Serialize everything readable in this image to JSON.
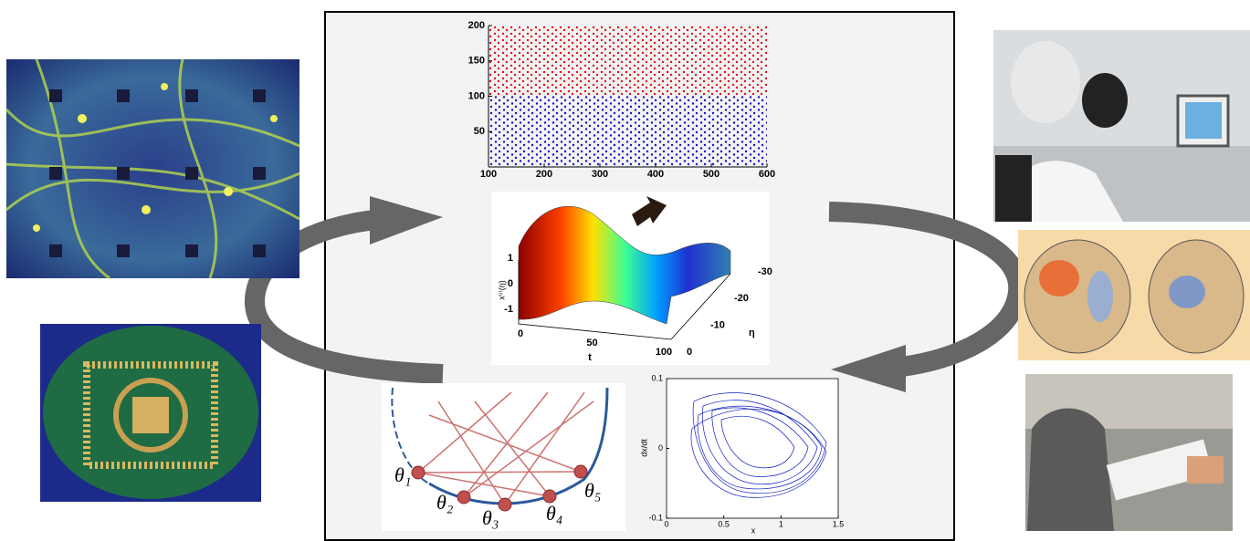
{
  "raster": {
    "xlim": [
      100,
      600
    ],
    "ylim": [
      0,
      200
    ],
    "xticks": [
      100,
      200,
      300,
      400,
      500,
      600
    ],
    "yticks": [
      50,
      100,
      150,
      200
    ]
  },
  "surface": {
    "z_label": "x⁽ⁱ⁾(η)",
    "t_label": "t",
    "eta_label": "η",
    "z_ticks": [
      1,
      0,
      -1
    ],
    "t_ticks": [
      0,
      50,
      100
    ],
    "eta_ticks": [
      0,
      -10,
      -20,
      -30
    ]
  },
  "network": {
    "nodes": [
      "θ₁",
      "θ₂",
      "θ₃",
      "θ₄",
      "θ₅"
    ]
  },
  "phase": {
    "xlim": [
      0,
      1.5
    ],
    "ylim": [
      -0.1,
      0.1
    ],
    "xticks": [
      0,
      0.5,
      1,
      1.5
    ],
    "yticks": [
      -0.1,
      0,
      0.1
    ],
    "xlabel": "x",
    "ylabel": "dx/dt"
  }
}
